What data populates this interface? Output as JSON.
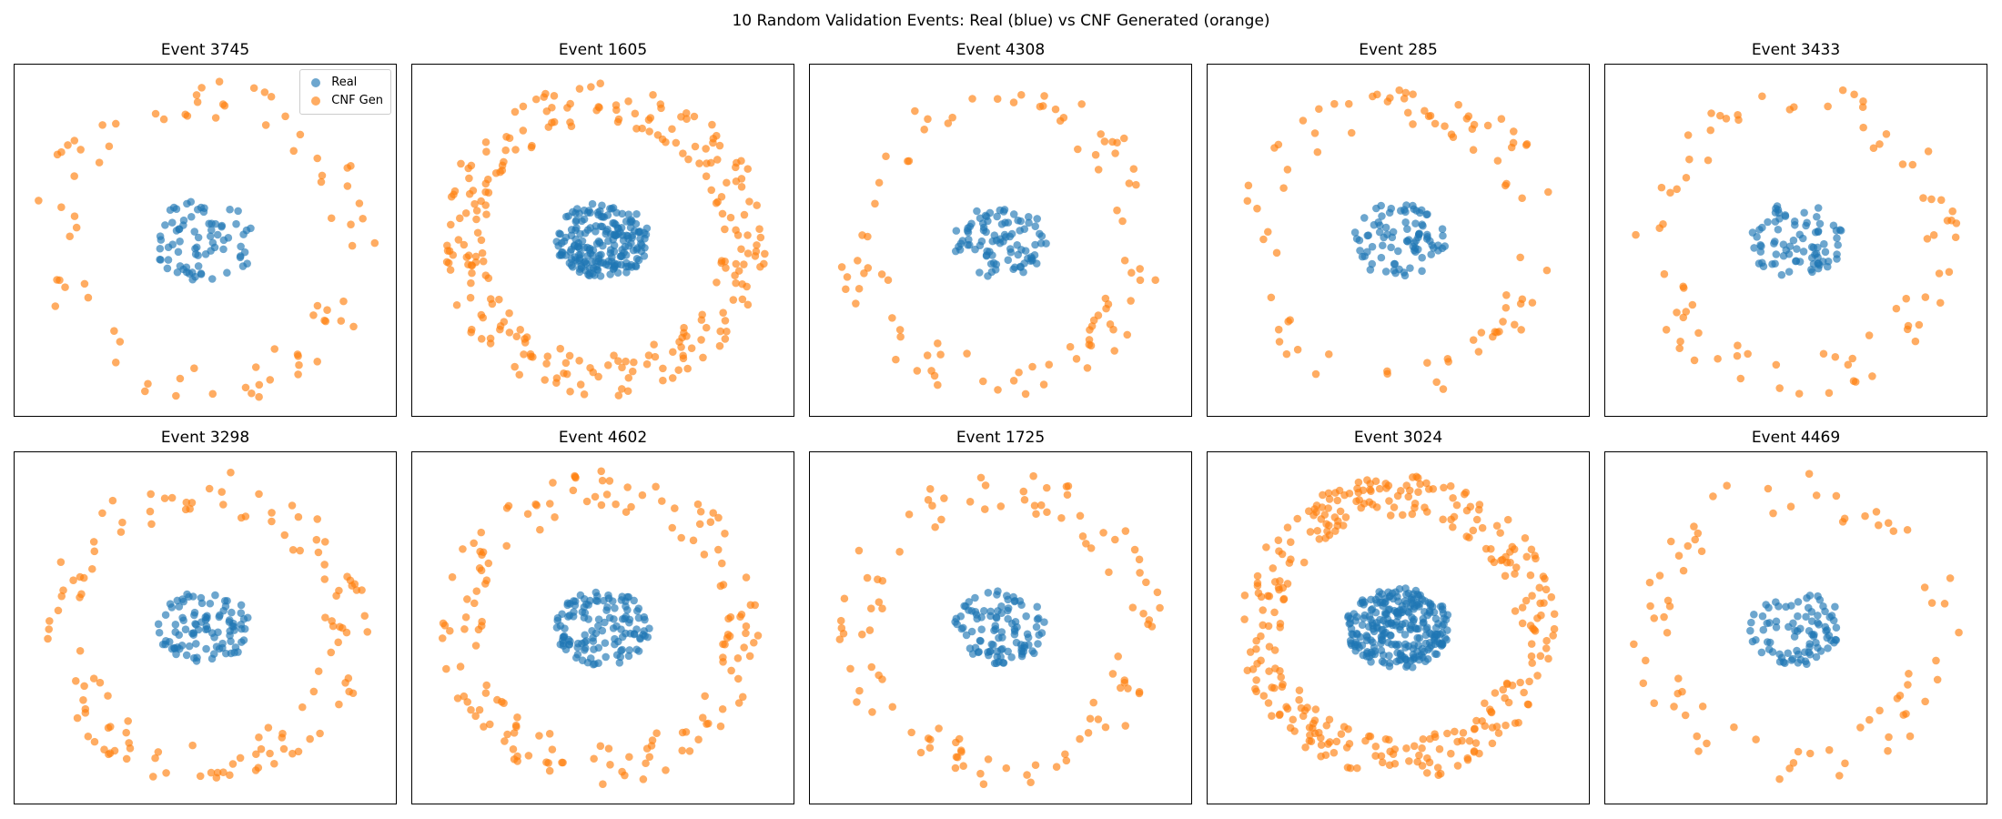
{
  "figure": {
    "suptitle": "10 Random Validation Events: Real (blue) vs CNF Generated (orange)"
  },
  "legend": {
    "real_label": "Real",
    "gen_label": "CNF Gen"
  },
  "colors": {
    "real": "#1f77b4",
    "generated": "#ff7f0e"
  },
  "chart_data": [
    {
      "type": "scatter",
      "title": "Event 3745",
      "legend": "top-right",
      "xticks": "none",
      "yticks": "none",
      "series": [
        {
          "name": "Real",
          "count": 75,
          "distribution": "disk",
          "center": [
            0,
            0
          ],
          "radius": 0.55
        },
        {
          "name": "CNF Gen",
          "count": 80,
          "distribution": "ring",
          "center": [
            0,
            0
          ],
          "radius": 1.7
        }
      ]
    },
    {
      "type": "scatter",
      "title": "Event 1605",
      "xticks": "none",
      "yticks": "none",
      "series": [
        {
          "name": "Real",
          "count": 200,
          "distribution": "disk",
          "center": [
            0,
            0
          ],
          "radius": 0.5
        },
        {
          "name": "CNF Gen",
          "count": 250,
          "distribution": "ring",
          "center": [
            0,
            0
          ],
          "radius": 1.6
        }
      ]
    },
    {
      "type": "scatter",
      "title": "Event 4308",
      "xticks": "none",
      "yticks": "none",
      "series": [
        {
          "name": "Real",
          "count": 90,
          "distribution": "disk",
          "center": [
            0,
            0
          ],
          "radius": 0.5
        },
        {
          "name": "CNF Gen",
          "count": 90,
          "distribution": "ring",
          "center": [
            0,
            0
          ],
          "radius": 1.6
        }
      ]
    },
    {
      "type": "scatter",
      "title": "Event 285",
      "xticks": "none",
      "yticks": "none",
      "series": [
        {
          "name": "Real",
          "count": 85,
          "distribution": "disk",
          "center": [
            0,
            0
          ],
          "radius": 0.5
        },
        {
          "name": "CNF Gen",
          "count": 85,
          "distribution": "ring",
          "center": [
            0,
            0
          ],
          "radius": 1.6
        }
      ]
    },
    {
      "type": "scatter",
      "title": "Event 3433",
      "xticks": "none",
      "yticks": "none",
      "series": [
        {
          "name": "Real",
          "count": 80,
          "distribution": "disk",
          "center": [
            0,
            0
          ],
          "radius": 0.5
        },
        {
          "name": "CNF Gen",
          "count": 80,
          "distribution": "ring",
          "center": [
            0,
            0
          ],
          "radius": 1.6
        }
      ]
    },
    {
      "type": "scatter",
      "title": "Event 3298",
      "xticks": "none",
      "yticks": "none",
      "series": [
        {
          "name": "Real",
          "count": 95,
          "distribution": "disk",
          "center": [
            0,
            0
          ],
          "radius": 0.5
        },
        {
          "name": "CNF Gen",
          "count": 125,
          "distribution": "ring",
          "center": [
            0,
            0
          ],
          "radius": 1.6
        }
      ]
    },
    {
      "type": "scatter",
      "title": "Event 4602",
      "xticks": "none",
      "yticks": "none",
      "series": [
        {
          "name": "Real",
          "count": 125,
          "distribution": "disk",
          "center": [
            0,
            0
          ],
          "radius": 0.5
        },
        {
          "name": "CNF Gen",
          "count": 155,
          "distribution": "ring",
          "center": [
            0,
            0
          ],
          "radius": 1.6
        }
      ]
    },
    {
      "type": "scatter",
      "title": "Event 1725",
      "xticks": "none",
      "yticks": "none",
      "series": [
        {
          "name": "Real",
          "count": 100,
          "distribution": "disk",
          "center": [
            0,
            0
          ],
          "radius": 0.5
        },
        {
          "name": "CNF Gen",
          "count": 105,
          "distribution": "ring",
          "center": [
            0,
            0
          ],
          "radius": 1.6
        }
      ]
    },
    {
      "type": "scatter",
      "title": "Event 3024",
      "xticks": "none",
      "yticks": "none",
      "series": [
        {
          "name": "Real",
          "count": 260,
          "distribution": "disk",
          "center": [
            0,
            0
          ],
          "radius": 0.55
        },
        {
          "name": "CNF Gen",
          "count": 320,
          "distribution": "ring",
          "center": [
            0,
            0
          ],
          "radius": 1.55
        }
      ]
    },
    {
      "type": "scatter",
      "title": "Event 4469",
      "xticks": "none",
      "yticks": "none",
      "series": [
        {
          "name": "Real",
          "count": 85,
          "distribution": "disk",
          "center": [
            0,
            0
          ],
          "radius": 0.5
        },
        {
          "name": "CNF Gen",
          "count": 75,
          "distribution": "ring",
          "center": [
            0,
            0
          ],
          "radius": 1.6
        }
      ]
    }
  ]
}
